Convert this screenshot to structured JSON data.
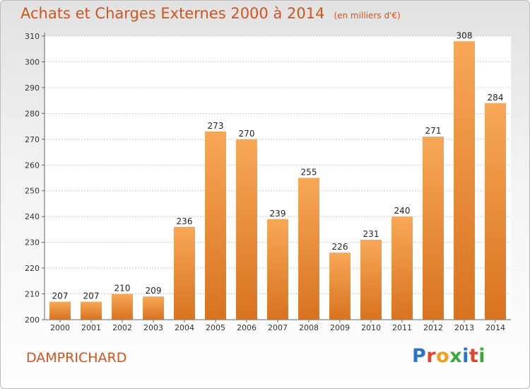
{
  "chart_data": {
    "type": "bar",
    "title": "Achats et Charges Externes 2000 à 2014",
    "subtitle": "(en milliers d'€)",
    "categories": [
      "2000",
      "2001",
      "2002",
      "2003",
      "2004",
      "2005",
      "2006",
      "2007",
      "2008",
      "2009",
      "2010",
      "2011",
      "2012",
      "2013",
      "2014"
    ],
    "values": [
      207,
      207,
      210,
      209,
      236,
      273,
      270,
      239,
      255,
      226,
      231,
      240,
      271,
      308,
      284
    ],
    "ylim": [
      200,
      310
    ],
    "yticks": [
      200,
      210,
      220,
      230,
      240,
      250,
      260,
      270,
      280,
      290,
      300,
      310
    ],
    "grid": true,
    "bar_color_light": "#f7a857",
    "bar_color_dark": "#d8731f"
  },
  "footer": {
    "commune": "DAMPRICHARD",
    "logo_text": "Proxiti",
    "logo_colors": [
      "#2a73c9",
      "#e0462f",
      "#f0a020",
      "#3aa83a",
      "#2a73c9",
      "#e0462f",
      "#3aa83a"
    ]
  },
  "colors": {
    "title": "#d2541c"
  }
}
